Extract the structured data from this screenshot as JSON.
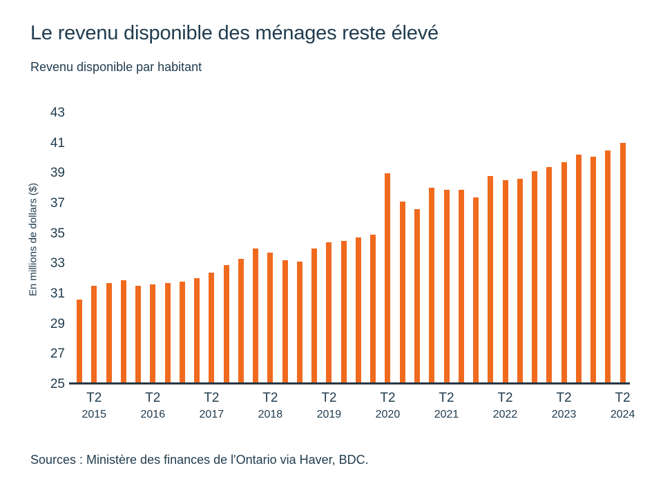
{
  "header": {
    "title": "Le revenu disponible des ménages reste élevé",
    "subtitle": "Revenu disponible par habitant"
  },
  "y_axis": {
    "label": "En millions de dollars ($)"
  },
  "footer": {
    "source": "Sources : Ministère des finances de l'Ontario via Haver, BDC."
  },
  "chart_data": {
    "type": "bar",
    "title": "Le revenu disponible des ménages reste élevé",
    "subtitle": "Revenu disponible par habitant",
    "ylabel": "En millions de dollars ($)",
    "xlabel": "",
    "frequency": "quarterly",
    "x_start": "T1 2015",
    "x_end": "T2 2024",
    "quarters": [
      "T1 2015",
      "T2 2015",
      "T3 2015",
      "T4 2015",
      "T1 2016",
      "T2 2016",
      "T3 2016",
      "T4 2016",
      "T1 2017",
      "T2 2017",
      "T3 2017",
      "T4 2017",
      "T1 2018",
      "T2 2018",
      "T3 2018",
      "T4 2018",
      "T1 2019",
      "T2 2019",
      "T3 2019",
      "T4 2019",
      "T1 2020",
      "T2 2020",
      "T3 2020",
      "T4 2020",
      "T1 2021",
      "T2 2021",
      "T3 2021",
      "T4 2021",
      "T1 2022",
      "T2 2022",
      "T3 2022",
      "T4 2022",
      "T1 2023",
      "T2 2023",
      "T3 2023",
      "T4 2023",
      "T1 2024",
      "T2 2024"
    ],
    "values": [
      30.5,
      31.4,
      31.6,
      31.8,
      31.4,
      31.5,
      31.6,
      31.7,
      31.9,
      32.3,
      32.8,
      33.2,
      33.9,
      33.6,
      33.1,
      33.0,
      33.9,
      34.3,
      34.4,
      34.6,
      34.8,
      38.9,
      37.0,
      36.5,
      37.9,
      37.8,
      37.8,
      37.3,
      38.7,
      38.4,
      38.5,
      39.0,
      39.3,
      39.6,
      40.1,
      40.0,
      40.4,
      40.9
    ],
    "yticks": [
      25,
      27,
      29,
      31,
      33,
      35,
      37,
      39,
      41,
      43
    ],
    "ylim": [
      25,
      43
    ],
    "grid": false,
    "legend": false,
    "x_tick_labels": [
      {
        "quarter": "T2",
        "year": "2015"
      },
      {
        "quarter": "T2",
        "year": "2016"
      },
      {
        "quarter": "T2",
        "year": "2017"
      },
      {
        "quarter": "T2",
        "year": "2018"
      },
      {
        "quarter": "T2",
        "year": "2019"
      },
      {
        "quarter": "T2",
        "year": "2020"
      },
      {
        "quarter": "T2",
        "year": "2021"
      },
      {
        "quarter": "T2",
        "year": "2022"
      },
      {
        "quarter": "T2",
        "year": "2023"
      },
      {
        "quarter": "T2",
        "year": "2024"
      }
    ],
    "bar_color": "#f06a1e",
    "axis_color": "#243746",
    "text_color": "#203c4f"
  }
}
